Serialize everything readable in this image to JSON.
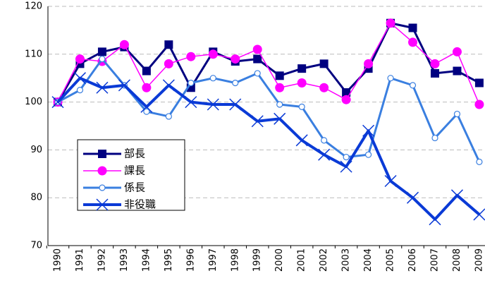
{
  "chart_data": {
    "type": "line",
    "categories": [
      "1990",
      "1991",
      "1992",
      "1993",
      "1994",
      "1995",
      "1996",
      "1997",
      "1998",
      "1999",
      "2000",
      "2001",
      "2002",
      "2003",
      "2004",
      "2005",
      "2006",
      "2007",
      "2008",
      "2009"
    ],
    "series": [
      {
        "name": "部長",
        "color": "#000080",
        "marker": "square",
        "values": [
          100,
          108,
          110.5,
          111.5,
          106.5,
          112,
          103,
          110.5,
          108.5,
          109,
          105.5,
          107,
          108,
          102,
          107,
          116.5,
          115.5,
          106,
          106.5,
          104
        ]
      },
      {
        "name": "課長",
        "color": "#ff00ff",
        "marker": "circle",
        "values": [
          100,
          109,
          108.5,
          112,
          103,
          108,
          109.5,
          110,
          109,
          111,
          103,
          104,
          103,
          100.5,
          108,
          116.5,
          112.5,
          108,
          110.5,
          99.5
        ]
      },
      {
        "name": "係長",
        "color": "#3a7fe0",
        "marker": "open-circle",
        "values": [
          100,
          102.5,
          109,
          103.5,
          98,
          97,
          104,
          105,
          104,
          106,
          99.5,
          99,
          92,
          88.5,
          89,
          105,
          103.5,
          92.5,
          97.5,
          87.5
        ]
      },
      {
        "name": "非役職",
        "color": "#0a3ad6",
        "marker": "x",
        "values": [
          100,
          105,
          103,
          103.5,
          99,
          103.5,
          100,
          99.5,
          99.5,
          96,
          96.5,
          92,
          89,
          86.5,
          94,
          83.5,
          80,
          75.5,
          80.5,
          76.5
        ]
      }
    ],
    "ylim": [
      70,
      120
    ],
    "yticks": [
      70,
      80,
      90,
      100,
      110,
      120
    ],
    "grid": true,
    "legend": "lower left"
  }
}
